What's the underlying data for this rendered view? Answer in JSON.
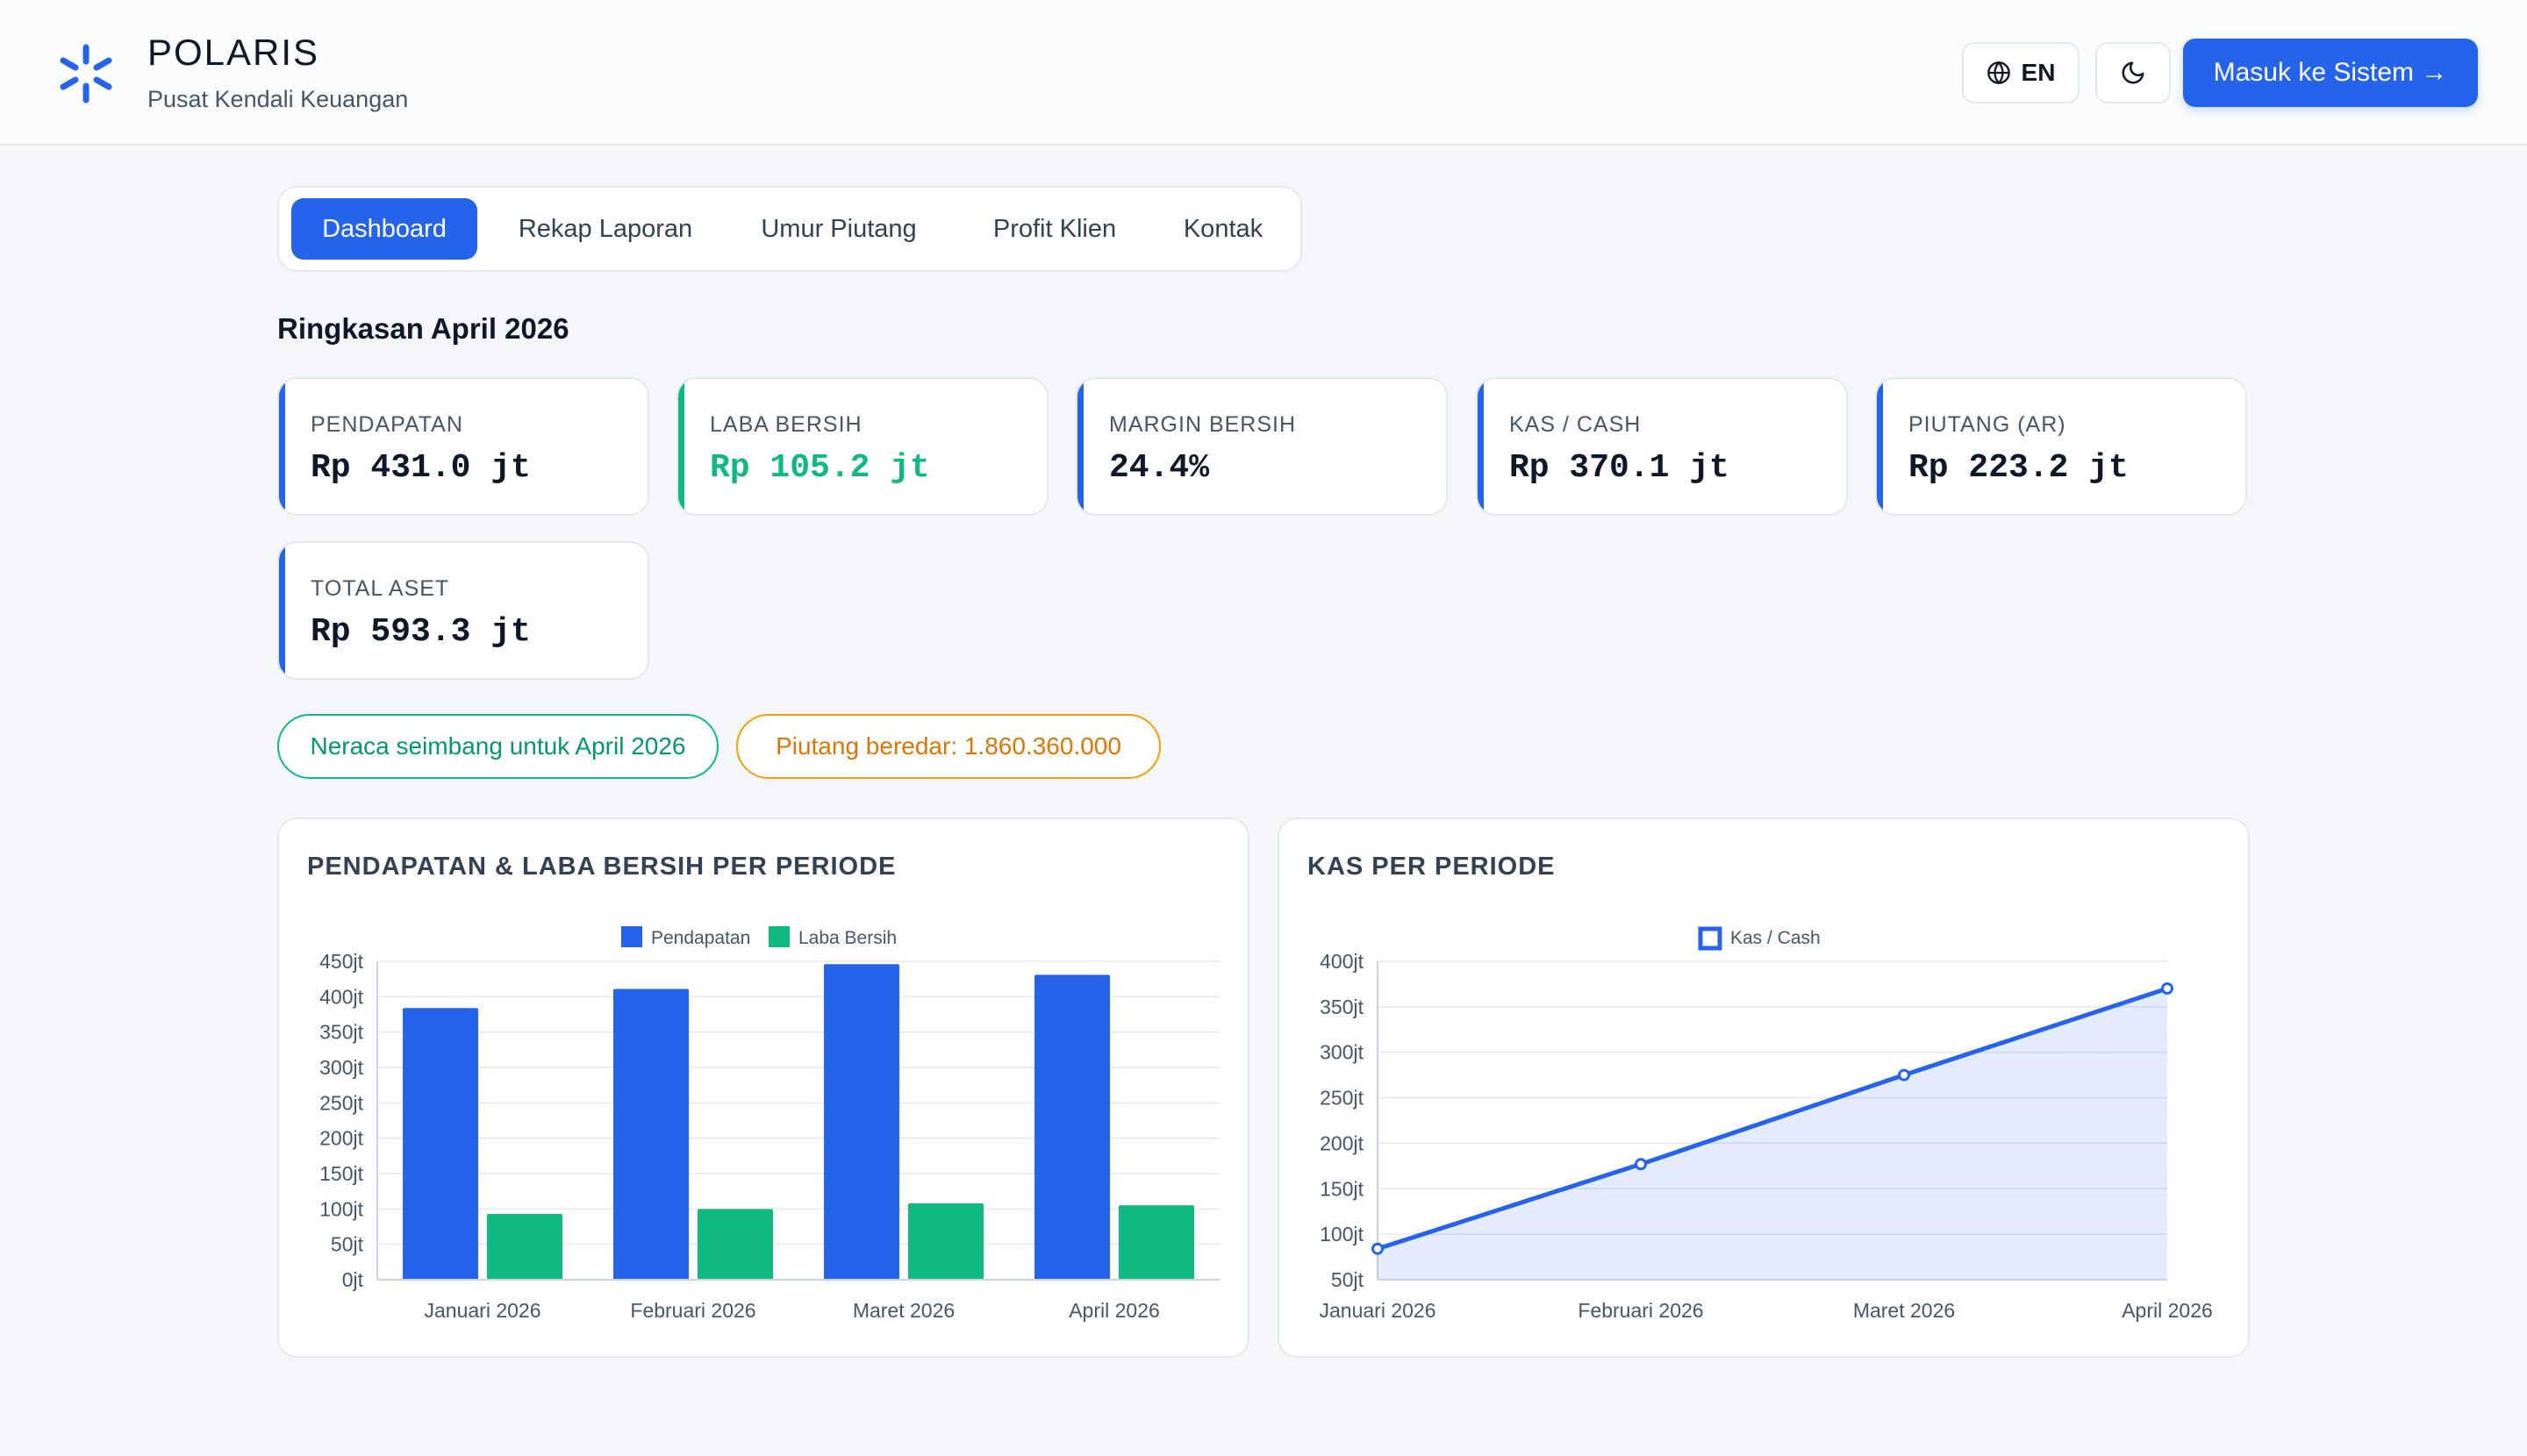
{
  "header": {
    "brand_title": "POLARIS",
    "brand_subtitle": "Pusat Kendali Keuangan",
    "lang_label": "EN",
    "login_label": "Masuk ke Sistem →"
  },
  "tabs": [
    {
      "label": "Dashboard",
      "active": true
    },
    {
      "label": "Rekap Laporan",
      "active": false
    },
    {
      "label": "Umur Piutang",
      "active": false
    },
    {
      "label": "Profit Klien",
      "active": false
    },
    {
      "label": "Kontak",
      "active": false
    }
  ],
  "summary_title": "Ringkasan April 2026",
  "kpis": [
    {
      "label": "PENDAPATAN",
      "value": "Rp 431.0 jt"
    },
    {
      "label": "LABA BERSIH",
      "value": "Rp 105.2 jt"
    },
    {
      "label": "MARGIN BERSIH",
      "value": "24.4%"
    },
    {
      "label": "KAS / CASH",
      "value": "Rp 370.1 jt"
    },
    {
      "label": "PIUTANG (AR)",
      "value": "Rp 223.2 jt"
    },
    {
      "label": "TOTAL ASET",
      "value": "Rp 593.3 jt"
    }
  ],
  "badges": {
    "balanced": "Neraca seimbang untuk April 2026",
    "receivable": "Piutang beredar: 1.860.360.000"
  },
  "colors": {
    "accent": "#2563eb",
    "positive": "#10b981",
    "warning": "#f59e0b"
  },
  "chart_data": [
    {
      "type": "bar",
      "title": "PENDAPATAN & LABA BERSIH PER PERIODE",
      "categories": [
        "Januari 2026",
        "Februari 2026",
        "Maret 2026",
        "April 2026"
      ],
      "series": [
        {
          "name": "Pendapatan",
          "color": "#2563eb",
          "values": [
            384,
            411,
            446,
            431
          ]
        },
        {
          "name": "Laba Bersih",
          "color": "#10b981",
          "values": [
            93,
            100,
            108,
            105.2
          ]
        }
      ],
      "ylim": [
        0,
        450
      ],
      "yticks": [
        "0jt",
        "50jt",
        "100jt",
        "150jt",
        "200jt",
        "250jt",
        "300jt",
        "350jt",
        "400jt",
        "450jt"
      ],
      "legend": "top-center",
      "grid": true
    },
    {
      "type": "area",
      "title": "KAS PER PERIODE",
      "x": [
        "Januari 2026",
        "Februari 2026",
        "Maret 2026",
        "April 2026"
      ],
      "series": [
        {
          "name": "Kas / Cash",
          "color": "#2563eb",
          "values": [
            84,
            177,
            275,
            370.1
          ]
        }
      ],
      "ylim": [
        50,
        400
      ],
      "yticks": [
        "50jt",
        "100jt",
        "150jt",
        "200jt",
        "250jt",
        "300jt",
        "350jt",
        "400jt"
      ],
      "legend": "top-center",
      "grid": true
    }
  ]
}
